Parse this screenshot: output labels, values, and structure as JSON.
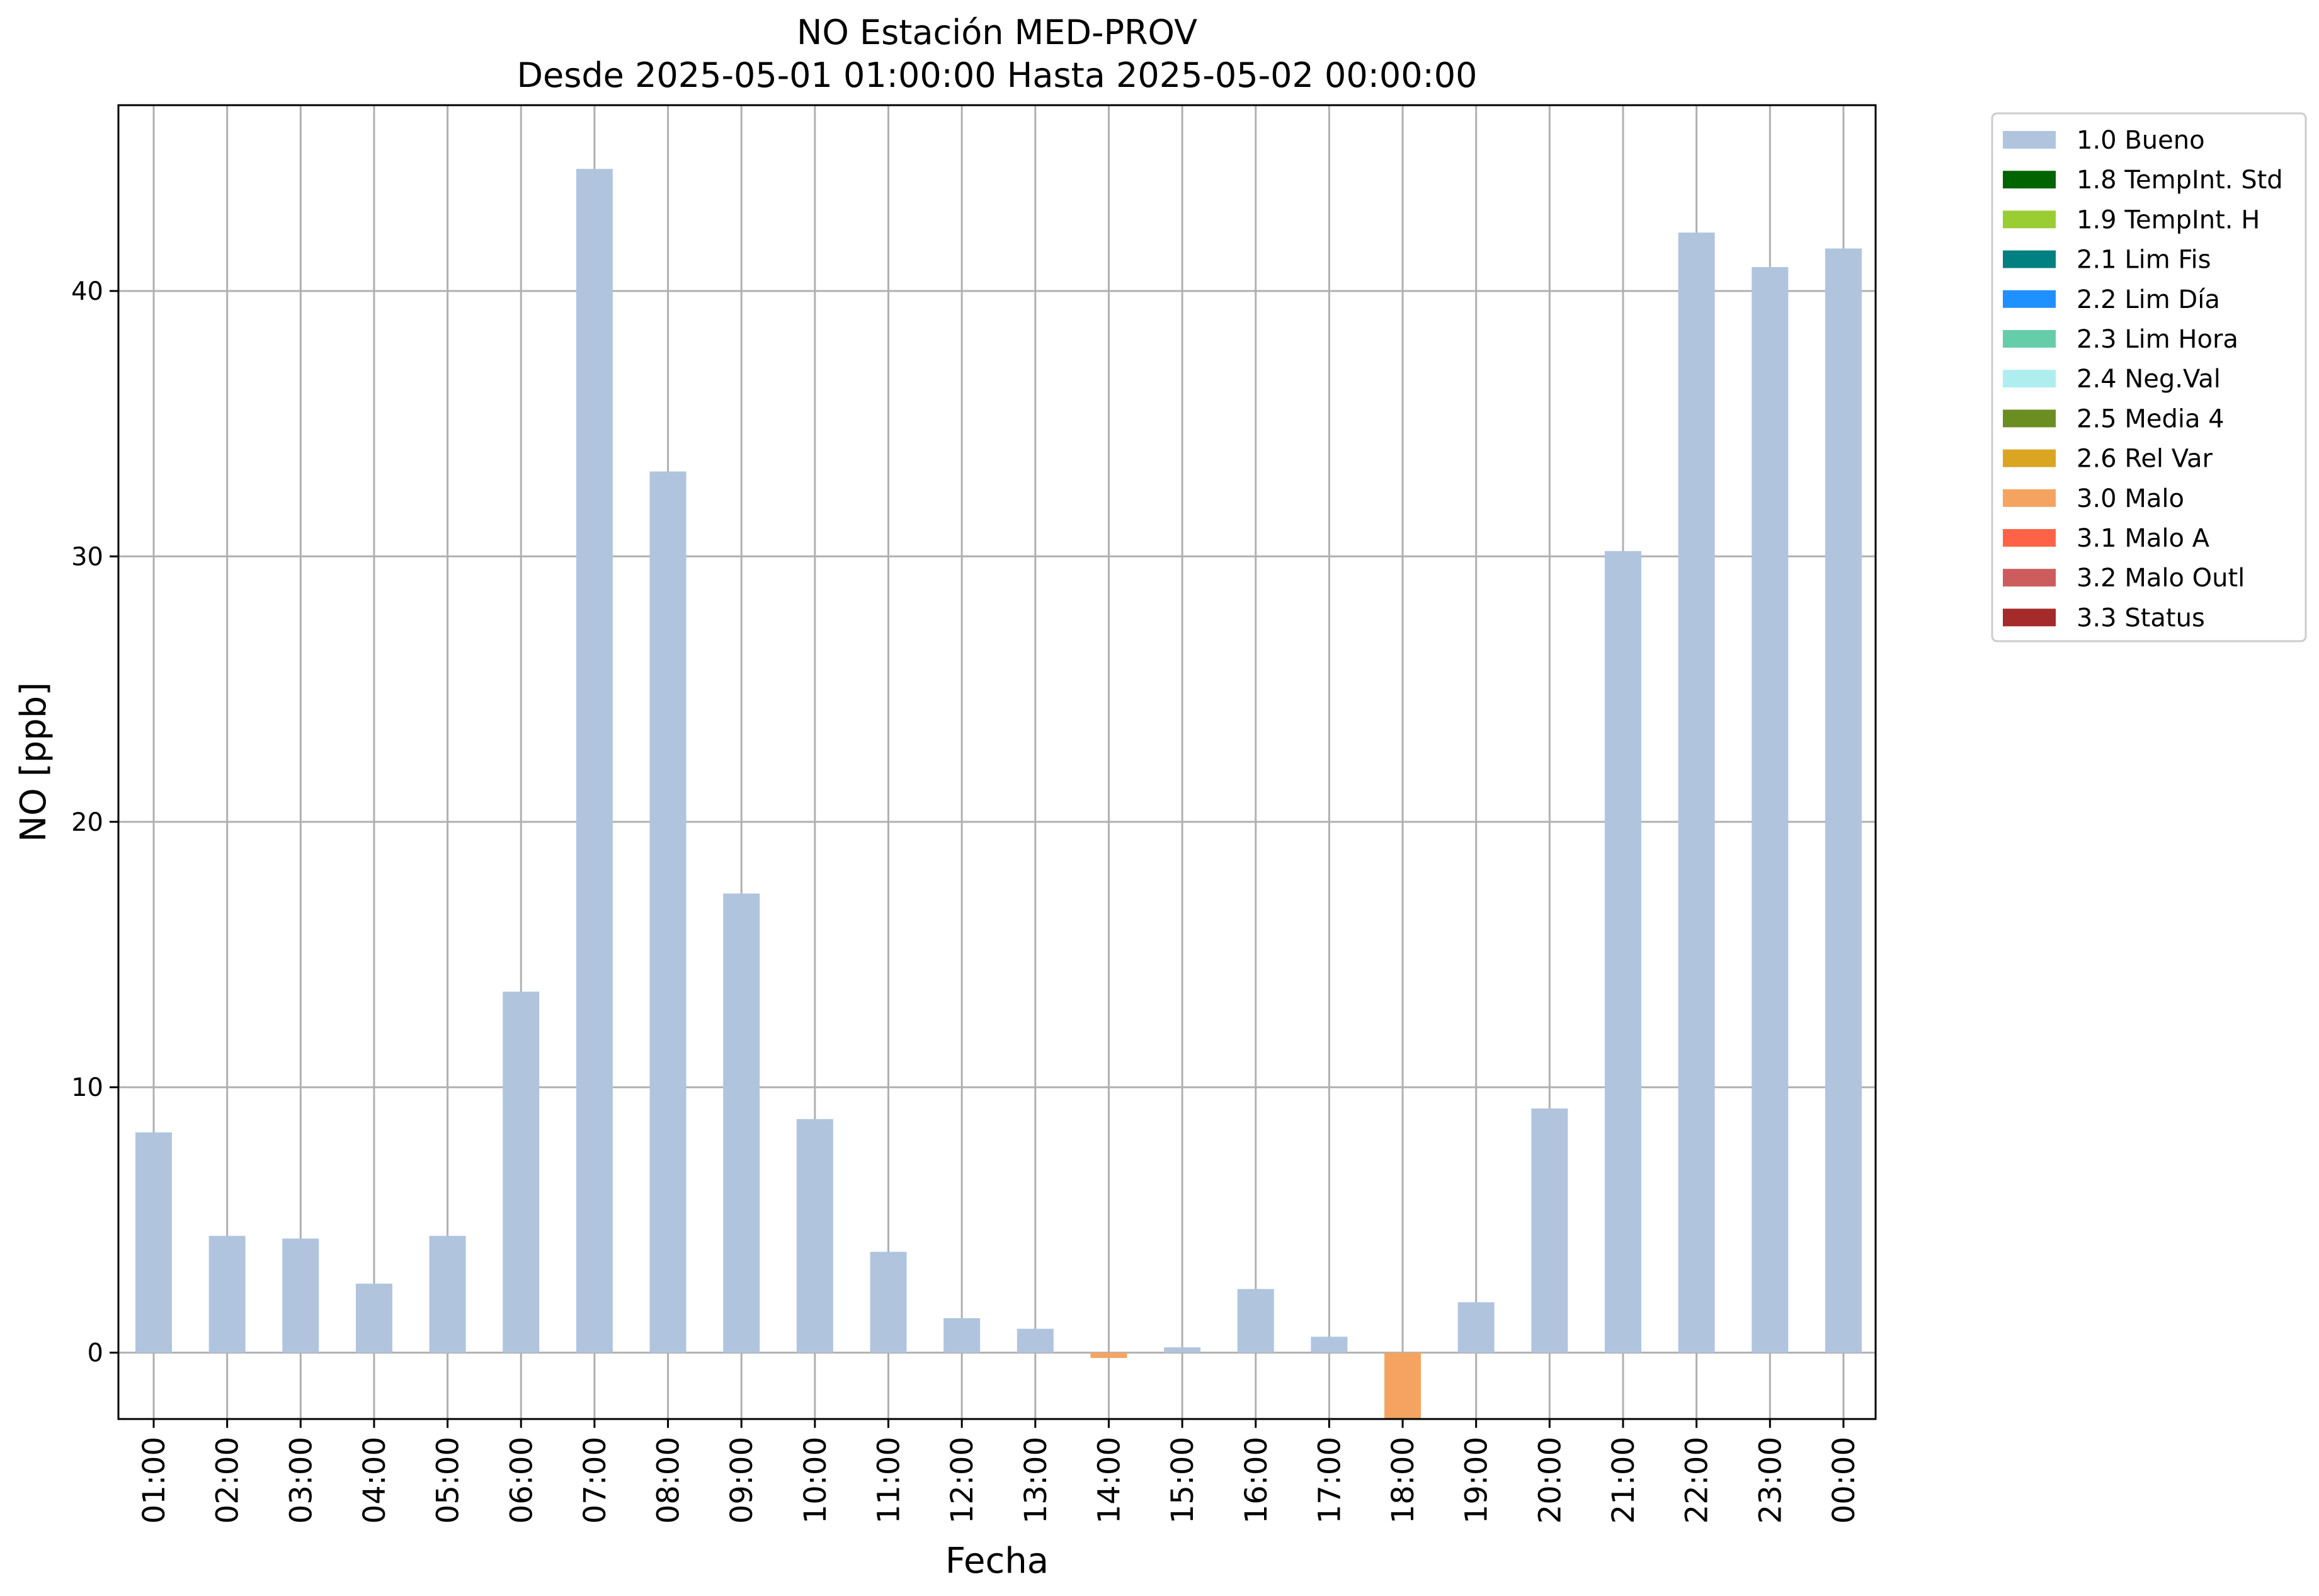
{
  "chart_data": {
    "type": "bar",
    "title": "NO Estación MED-PROV",
    "subtitle": "Desde 2025-05-01 01:00:00 Hasta 2025-05-02 00:00:00",
    "xlabel": "Fecha",
    "ylabel": "NO [ppb]",
    "ylim": [
      -2.5,
      47
    ],
    "yticks": [
      0,
      10,
      20,
      30,
      40
    ],
    "grid": true,
    "legend_position": "outside-top-right",
    "categories": [
      "01:00",
      "02:00",
      "03:00",
      "04:00",
      "05:00",
      "06:00",
      "07:00",
      "08:00",
      "09:00",
      "10:00",
      "11:00",
      "12:00",
      "13:00",
      "14:00",
      "15:00",
      "16:00",
      "17:00",
      "18:00",
      "19:00",
      "20:00",
      "21:00",
      "22:00",
      "23:00",
      "00:00"
    ],
    "values": [
      8.3,
      4.4,
      4.3,
      2.6,
      4.4,
      13.6,
      44.6,
      33.2,
      17.3,
      8.8,
      3.8,
      1.3,
      0.9,
      -0.2,
      0.2,
      2.4,
      0.6,
      -2.5,
      1.9,
      9.2,
      30.2,
      42.2,
      40.9,
      41.6
    ],
    "flags": [
      "1.0 Bueno",
      "1.0 Bueno",
      "1.0 Bueno",
      "1.0 Bueno",
      "1.0 Bueno",
      "1.0 Bueno",
      "1.0 Bueno",
      "1.0 Bueno",
      "1.0 Bueno",
      "1.0 Bueno",
      "1.0 Bueno",
      "1.0 Bueno",
      "1.0 Bueno",
      "3.0 Malo",
      "1.0 Bueno",
      "1.0 Bueno",
      "1.0 Bueno",
      "3.0 Malo",
      "1.0 Bueno",
      "1.0 Bueno",
      "1.0 Bueno",
      "1.0 Bueno",
      "1.0 Bueno",
      "1.0 Bueno"
    ],
    "legend": [
      {
        "name": "1.0 Bueno",
        "color": "#b0c4de"
      },
      {
        "name": "1.8 TempInt. Std",
        "color": "#006400"
      },
      {
        "name": "1.9 TempInt. H",
        "color": "#9acd32"
      },
      {
        "name": "2.1 Lim Fis",
        "color": "#008080"
      },
      {
        "name": "2.2 Lim Día",
        "color": "#1e90ff"
      },
      {
        "name": "2.3 Lim Hora",
        "color": "#66cdaa"
      },
      {
        "name": "2.4 Neg.Val",
        "color": "#afeeee"
      },
      {
        "name": "2.5 Media 4",
        "color": "#6b8e23"
      },
      {
        "name": "2.6 Rel Var",
        "color": "#daa520"
      },
      {
        "name": "3.0 Malo",
        "color": "#f4a460"
      },
      {
        "name": "3.1 Malo A",
        "color": "#ff6347"
      },
      {
        "name": "3.2 Malo Outl",
        "color": "#cd5c5c"
      },
      {
        "name": "3.3 Status",
        "color": "#a52a2a"
      }
    ]
  }
}
